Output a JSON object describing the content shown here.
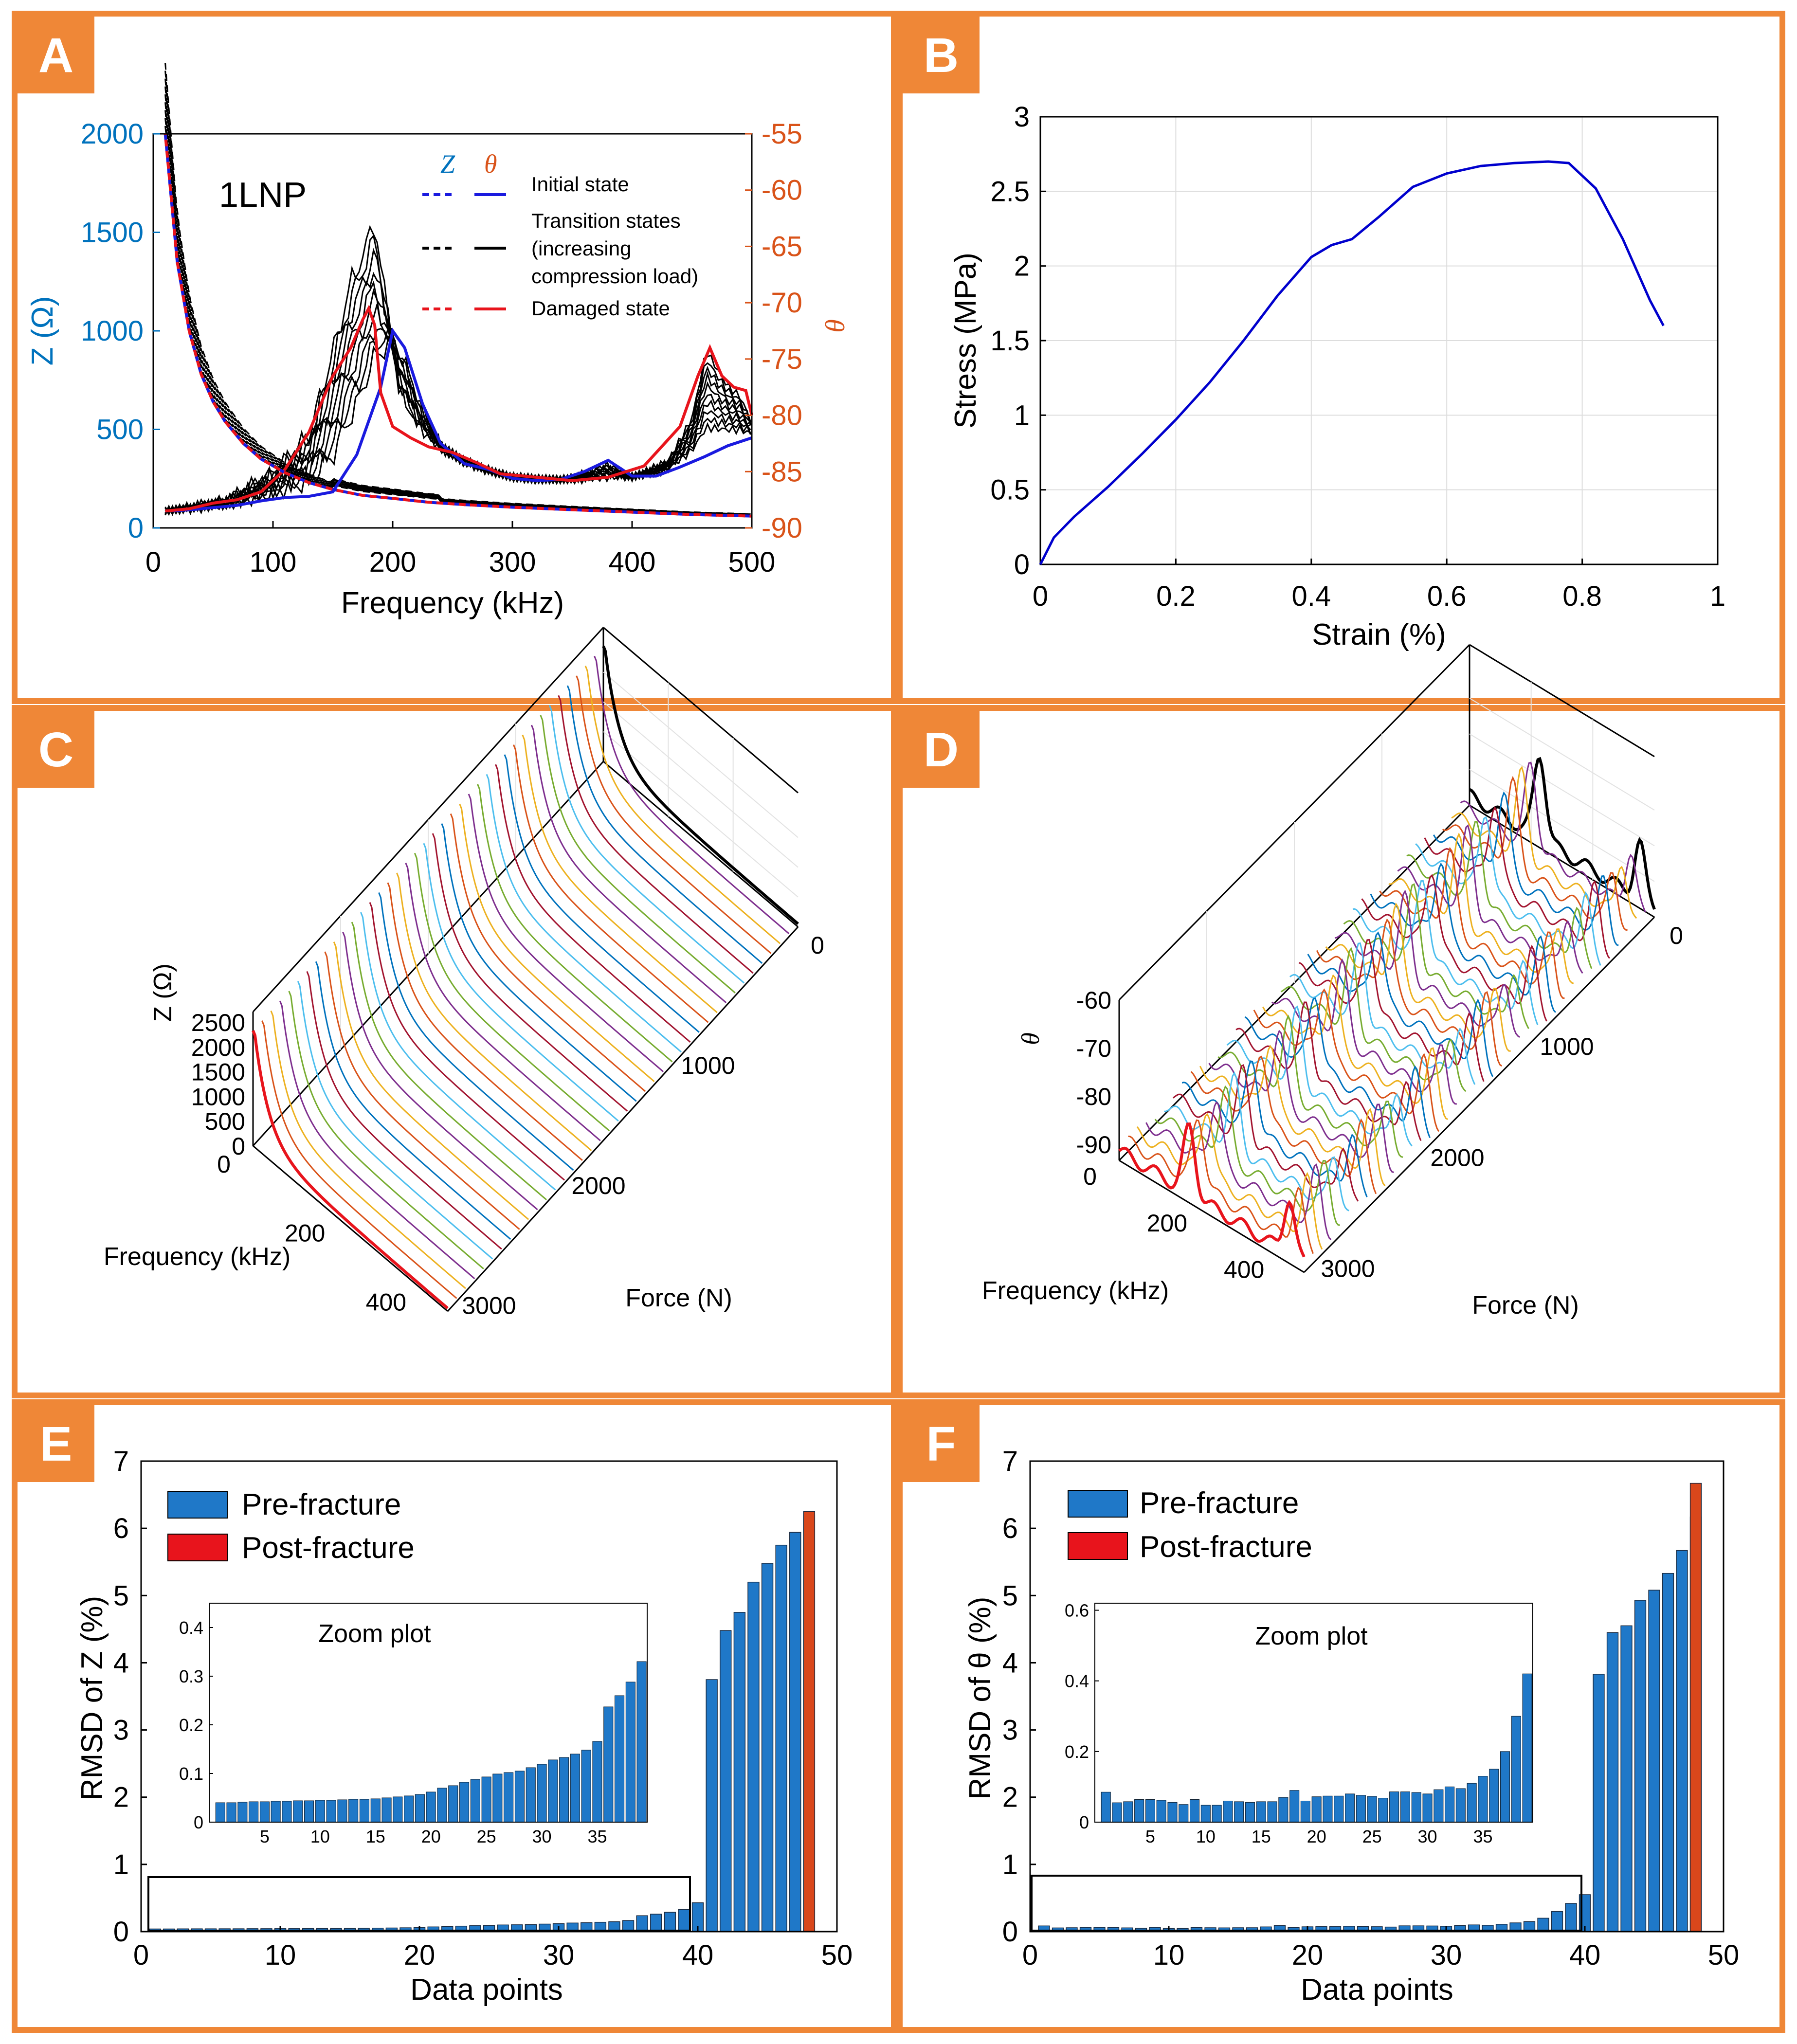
{
  "colors": {
    "frame": "#ef8737",
    "axis_blue": "#0072bd",
    "axis_orange": "#d95319",
    "bar_blue": "#1f78c8",
    "bar_red": "#d9471b",
    "legend_red": "#e8141c",
    "stress_curve": "#0000cd",
    "waterfall": [
      "#0072bd",
      "#d95319",
      "#edb120",
      "#7e2f8e",
      "#77ac30",
      "#4dbeee",
      "#a2142f"
    ]
  },
  "panels": {
    "A": {
      "letter": "A"
    },
    "B": {
      "letter": "B"
    },
    "C": {
      "letter": "C"
    },
    "D": {
      "letter": "D"
    },
    "E": {
      "letter": "E"
    },
    "F": {
      "letter": "F"
    }
  },
  "chart_data": [
    {
      "id": "A",
      "type": "line",
      "annotation": "1LNP",
      "xlabel": "Frequency (kHz)",
      "ylabel": "Z (Ω)",
      "y2label": "θ",
      "xlim": [
        0,
        500
      ],
      "ylim": [
        0,
        2000
      ],
      "y2lim": [
        -90,
        -55
      ],
      "xticks": [
        "0",
        "100",
        "200",
        "300",
        "400",
        "500"
      ],
      "yticks": [
        "0",
        "500",
        "1000",
        "1500",
        "2000"
      ],
      "y2ticks": [
        "-55",
        "-60",
        "-65",
        "-70",
        "-75",
        "-80",
        "-85",
        "-90"
      ],
      "legend": {
        "header_z": "Z",
        "header_theta": "θ",
        "initial": "Initial state",
        "transition_1": "Transition states",
        "transition_2": "(increasing",
        "transition_3": "compression load)",
        "damaged": "Damaged state"
      },
      "z_curve_x": [
        10,
        20,
        30,
        40,
        50,
        60,
        75,
        90,
        110,
        130,
        150,
        175,
        200,
        230,
        260,
        300,
        350,
        400,
        450,
        500
      ],
      "z_curve_y": [
        2000,
        1350,
        1000,
        780,
        640,
        540,
        430,
        350,
        280,
        230,
        195,
        165,
        150,
        130,
        118,
        105,
        92,
        80,
        68,
        60
      ],
      "theta_initial_x": [
        10,
        30,
        50,
        70,
        90,
        110,
        130,
        150,
        170,
        180,
        190,
        200,
        210,
        225,
        240,
        260,
        280,
        300,
        320,
        340,
        360,
        380,
        400,
        420,
        440,
        460,
        480,
        500
      ],
      "theta_initial_y": [
        -88.5,
        -88.4,
        -88.2,
        -88.0,
        -87.6,
        -87.3,
        -87.2,
        -86.8,
        -83.5,
        -80.5,
        -77.5,
        -72.5,
        -74,
        -79,
        -82.5,
        -84.3,
        -84.8,
        -85.6,
        -85.8,
        -85.7,
        -85.0,
        -84.0,
        -85.4,
        -85.4,
        -84.6,
        -83.7,
        -82.7,
        -82.0
      ],
      "theta_damaged_x": [
        10,
        30,
        50,
        70,
        90,
        110,
        130,
        150,
        165,
        175,
        180,
        185,
        190,
        200,
        215,
        230,
        250,
        270,
        290,
        320,
        350,
        380,
        410,
        440,
        455,
        465,
        475,
        485,
        495,
        500
      ],
      "theta_damaged_y": [
        -88.5,
        -88.3,
        -87.8,
        -87.5,
        -86.8,
        -84.8,
        -81.5,
        -76.5,
        -74.0,
        -71.5,
        -70.5,
        -72.0,
        -78.0,
        -81.0,
        -82.0,
        -82.8,
        -83.3,
        -84.2,
        -85.2,
        -85.5,
        -85.8,
        -85.5,
        -84.5,
        -81.0,
        -76.5,
        -74.0,
        -76.5,
        -77.5,
        -77.8,
        -80.0
      ],
      "theta_peak_x": [
        10,
        60,
        100,
        130,
        150,
        165,
        175,
        185,
        195,
        205,
        220,
        240,
        260,
        280,
        300,
        350,
        400,
        430,
        450,
        462,
        472,
        480,
        490,
        500
      ],
      "theta_peak_y": [
        -88.5,
        -87.5,
        -85.0,
        -81.5,
        -73.5,
        -67.0,
        -64.5,
        -61.5,
        -70.0,
        -78.0,
        -81.0,
        -83.0,
        -84.0,
        -85.0,
        -85.4,
        -85.8,
        -85.5,
        -84.0,
        -80.0,
        -73.5,
        -75.5,
        -77.0,
        -78.0,
        -80.5
      ]
    },
    {
      "id": "B",
      "type": "line",
      "xlabel": "Strain (%)",
      "ylabel": "Stress (MPa)",
      "xlim": [
        0,
        1
      ],
      "ylim": [
        0,
        3
      ],
      "xticks": [
        "0",
        "0.2",
        "0.4",
        "0.6",
        "0.8",
        "1"
      ],
      "yticks": [
        "0",
        "0.5",
        "1",
        "1.5",
        "2",
        "2.5",
        "3"
      ],
      "x": [
        0,
        0.02,
        0.05,
        0.1,
        0.15,
        0.2,
        0.25,
        0.3,
        0.35,
        0.4,
        0.43,
        0.46,
        0.5,
        0.55,
        0.6,
        0.65,
        0.7,
        0.75,
        0.78,
        0.82,
        0.86,
        0.9,
        0.92
      ],
      "y": [
        0,
        0.18,
        0.32,
        0.52,
        0.74,
        0.97,
        1.22,
        1.5,
        1.8,
        2.06,
        2.14,
        2.18,
        2.33,
        2.53,
        2.62,
        2.67,
        2.69,
        2.7,
        2.69,
        2.52,
        2.18,
        1.77,
        1.6
      ]
    },
    {
      "id": "C",
      "type": "line",
      "subtype": "waterfall3d",
      "zlabel": "Z (Ω)",
      "xlabel": "Frequency (kHz)",
      "ylabel": "Force (N)",
      "zticks": [
        "0",
        "500",
        "1000",
        "1500",
        "2000",
        "2500"
      ],
      "fticks": [
        "0",
        "200",
        "400"
      ],
      "forceticks": [
        "0",
        "1000",
        "2000",
        "3000"
      ],
      "curve_count": 40
    },
    {
      "id": "D",
      "type": "line",
      "subtype": "waterfall3d",
      "zlabel": "θ",
      "xlabel": "Frequency (kHz)",
      "ylabel": "Force (N)",
      "zticks": [
        "-60",
        "-70",
        "-80",
        "-90"
      ],
      "fticks": [
        "0",
        "200",
        "400"
      ],
      "forceticks": [
        "0",
        "1000",
        "2000",
        "3000"
      ],
      "curve_count": 40
    },
    {
      "id": "E",
      "type": "bar",
      "xlabel": "Data points",
      "ylabel": "RMSD of Z (%)",
      "xlim": [
        0,
        50
      ],
      "ylim": [
        0,
        7
      ],
      "xticks": [
        "0",
        "10",
        "20",
        "30",
        "40",
        "50"
      ],
      "yticks": [
        "0",
        "1",
        "2",
        "3",
        "4",
        "5",
        "6",
        "7"
      ],
      "legend": [
        "Pre-fracture",
        "Post-fracture"
      ],
      "inset_title": "Zoom plot",
      "inset_xticks": [
        "5",
        "10",
        "15",
        "20",
        "25",
        "30",
        "35"
      ],
      "inset_yticks": [
        "0",
        "0.1",
        "0.2",
        "0.3",
        "0.4"
      ],
      "inset_ylim": [
        0,
        0.45
      ],
      "pre_values": [
        0.04,
        0.04,
        0.041,
        0.042,
        0.042,
        0.043,
        0.043,
        0.044,
        0.044,
        0.045,
        0.045,
        0.046,
        0.047,
        0.047,
        0.048,
        0.05,
        0.052,
        0.054,
        0.057,
        0.062,
        0.07,
        0.075,
        0.082,
        0.088,
        0.093,
        0.099,
        0.102,
        0.105,
        0.112,
        0.119,
        0.128,
        0.133,
        0.14,
        0.148,
        0.166,
        0.237,
        0.26,
        0.288,
        0.33,
        0.43,
        3.75,
        4.48,
        4.75,
        5.2,
        5.48,
        5.75,
        5.94,
        6.2
      ],
      "post_values": [
        6.25
      ],
      "post_x": [
        48
      ]
    },
    {
      "id": "F",
      "type": "bar",
      "xlabel": "Data points",
      "ylabel": "RMSD of θ (%)",
      "xlim": [
        0,
        50
      ],
      "ylim": [
        0,
        7
      ],
      "xticks": [
        "0",
        "10",
        "20",
        "30",
        "40",
        "50"
      ],
      "yticks": [
        "0",
        "1",
        "2",
        "3",
        "4",
        "5",
        "6",
        "7"
      ],
      "legend": [
        "Pre-fracture",
        "Post-fracture"
      ],
      "inset_title": "Zoom plot",
      "inset_xticks": [
        "5",
        "10",
        "15",
        "20",
        "25",
        "30",
        "35"
      ],
      "inset_yticks": [
        "0",
        "0.2",
        "0.4",
        "0.6"
      ],
      "inset_ylim": [
        0,
        0.62
      ],
      "pre_values": [
        0.085,
        0.055,
        0.058,
        0.064,
        0.064,
        0.062,
        0.056,
        0.05,
        0.064,
        0.048,
        0.048,
        0.06,
        0.058,
        0.056,
        0.058,
        0.058,
        0.07,
        0.09,
        0.06,
        0.072,
        0.074,
        0.074,
        0.08,
        0.076,
        0.073,
        0.068,
        0.086,
        0.086,
        0.084,
        0.08,
        0.092,
        0.1,
        0.095,
        0.11,
        0.13,
        0.15,
        0.2,
        0.3,
        0.42,
        0.55,
        3.83,
        4.45,
        4.55,
        4.93,
        5.08,
        5.33,
        5.67,
        6.17
      ],
      "post_values": [
        6.67
      ],
      "post_x": [
        48
      ]
    }
  ]
}
